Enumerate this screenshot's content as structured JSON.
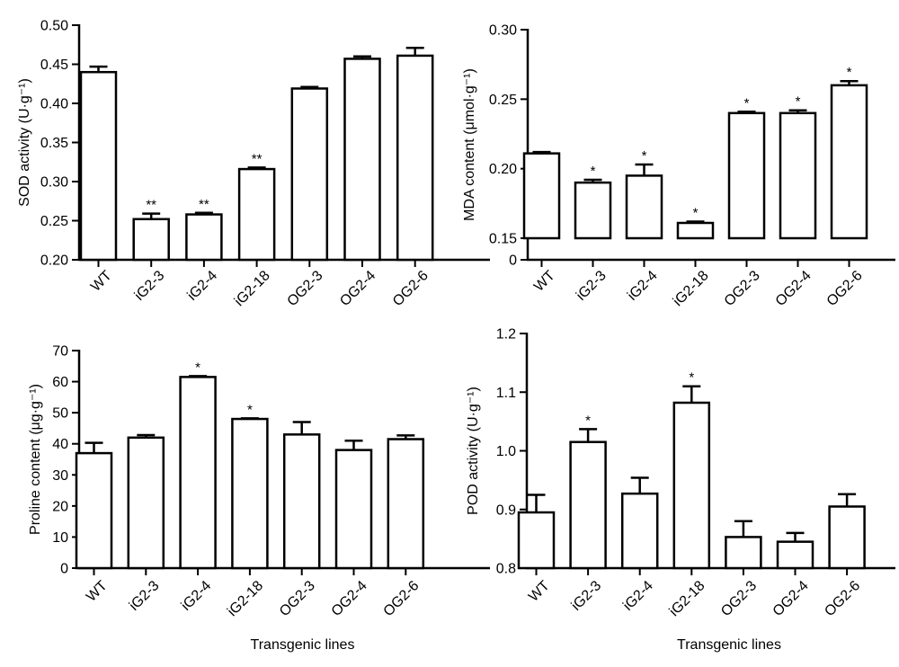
{
  "chart_data": [
    {
      "type": "bar",
      "categories": [
        "WT",
        "iG2-3",
        "iG2-4",
        "iG2-18",
        "OG2-3",
        "OG2-4",
        "OG2-6"
      ],
      "values": [
        0.44,
        0.252,
        0.258,
        0.316,
        0.419,
        0.457,
        0.461
      ],
      "errors": [
        0.007,
        0.007,
        0.002,
        0.002,
        0.002,
        0.003,
        0.01
      ],
      "significance": [
        "",
        "**",
        "**",
        "**",
        "",
        "",
        ""
      ],
      "ylabel": "SOD activity (U·g⁻¹)",
      "xlabel": "",
      "ylim": [
        0.2,
        0.5
      ],
      "yticks": [
        0.2,
        0.25,
        0.3,
        0.35,
        0.4,
        0.45,
        0.5
      ],
      "ytick_labels": [
        "0.20",
        "0.25",
        "0.30",
        "0.35",
        "0.40",
        "0.45",
        "0.50"
      ]
    },
    {
      "type": "bar",
      "categories": [
        "WT",
        "iG2-3",
        "iG2-4",
        "iG2-18",
        "OG2-3",
        "OG2-4",
        "OG2-6"
      ],
      "values": [
        0.211,
        0.19,
        0.195,
        0.161,
        0.24,
        0.24,
        0.26
      ],
      "errors": [
        0.001,
        0.002,
        0.008,
        0.001,
        0.001,
        0.002,
        0.003
      ],
      "significance": [
        "",
        "*",
        "*",
        "*",
        "*",
        "*",
        "*"
      ],
      "ylabel": "MDA content (μmol·g⁻¹)",
      "xlabel": "",
      "ylim": [
        0,
        0.3
      ],
      "axis_break_below": 0.15,
      "yticks": [
        0,
        0.15,
        0.2,
        0.25,
        0.3
      ],
      "ytick_labels": [
        "0",
        "0.15",
        "0.20",
        "0.25",
        "0.30"
      ]
    },
    {
      "type": "bar",
      "categories": [
        "WT",
        "iG2-3",
        "iG2-4",
        "iG2-18",
        "OG2-3",
        "OG2-4",
        "OG2-6"
      ],
      "values": [
        37,
        42,
        61.5,
        48,
        43,
        38,
        41.5
      ],
      "errors": [
        3.3,
        0.8,
        0.3,
        0.2,
        4,
        3,
        1.2
      ],
      "significance": [
        "",
        "",
        "*",
        "*",
        "",
        "",
        ""
      ],
      "ylabel": "Proline content (μg·g⁻¹)",
      "xlabel": "Transgenic lines",
      "ylim": [
        0,
        70
      ],
      "yticks": [
        0,
        10,
        20,
        30,
        40,
        50,
        60,
        70
      ],
      "ytick_labels": [
        "0",
        "10",
        "20",
        "30",
        "40",
        "50",
        "60",
        "70"
      ]
    },
    {
      "type": "bar",
      "categories": [
        "WT",
        "iG2-3",
        "iG2-4",
        "iG2-18",
        "OG2-3",
        "OG2-4",
        "OG2-6"
      ],
      "values": [
        0.895,
        1.015,
        0.927,
        1.082,
        0.853,
        0.845,
        0.905
      ],
      "errors": [
        0.03,
        0.022,
        0.027,
        0.028,
        0.027,
        0.015,
        0.021
      ],
      "significance": [
        "",
        "*",
        "",
        "*",
        "",
        "",
        ""
      ],
      "ylabel": "POD activity (U·g⁻¹)",
      "xlabel": "Transgenic lines",
      "ylim": [
        0.8,
        1.2
      ],
      "yticks": [
        0.8,
        0.9,
        1.0,
        1.1,
        1.2
      ],
      "ytick_labels": [
        "0.8",
        "0.9",
        "1.0",
        "1.1",
        "1.2"
      ]
    }
  ]
}
